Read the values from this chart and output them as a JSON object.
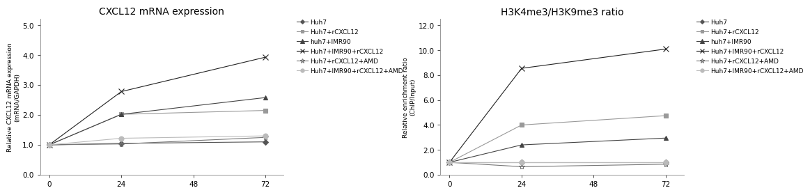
{
  "chart1": {
    "title": "CXCL12 mRNA expression",
    "ylabel": "Relative CXCL12 mRNA expression\n(mRNA/GAPDH)",
    "xlim": [
      -3,
      78
    ],
    "ylim": [
      0.0,
      5.2
    ],
    "yticks": [
      0.0,
      1.0,
      2.0,
      3.0,
      4.0,
      5.0
    ],
    "xticks": [
      0,
      24,
      48,
      72
    ],
    "x": [
      0,
      24,
      72
    ],
    "series": [
      {
        "label": "Huh7",
        "values": [
          1.0,
          1.05,
          1.1
        ],
        "color": "#555555",
        "marker": "D",
        "markersize": 4
      },
      {
        "label": "Huh7+rCXCL12",
        "values": [
          1.0,
          2.02,
          2.15
        ],
        "color": "#999999",
        "marker": "s",
        "markersize": 4
      },
      {
        "label": "huh7+IMR90",
        "values": [
          1.0,
          2.02,
          2.58
        ],
        "color": "#444444",
        "marker": "^",
        "markersize": 5
      },
      {
        "label": "Huh7+IMR90+rCXCL12",
        "values": [
          1.0,
          2.78,
          3.93
        ],
        "color": "#222222",
        "marker": "x",
        "markersize": 6
      },
      {
        "label": "Huh7+rCXCL12+AMD",
        "values": [
          1.0,
          1.03,
          1.25
        ],
        "color": "#777777",
        "marker": "*",
        "markersize": 6
      },
      {
        "label": "Huh7+IMR90+rCXCL12+AMD",
        "values": [
          1.0,
          1.22,
          1.3
        ],
        "color": "#bbbbbb",
        "marker": "o",
        "markersize": 5
      }
    ]
  },
  "chart2": {
    "title": "H3K4me3/H3K9me3 ratio",
    "ylabel": "Relative enrichment ratio\n(ChIP/Input)",
    "xlim": [
      -3,
      78
    ],
    "ylim": [
      0.0,
      12.5
    ],
    "yticks": [
      0.0,
      2.0,
      4.0,
      6.0,
      8.0,
      10.0,
      12.0
    ],
    "xticks": [
      0,
      24,
      48,
      72
    ],
    "x": [
      0,
      24,
      72
    ],
    "series": [
      {
        "label": "Huh7",
        "values": [
          1.0,
          1.0,
          1.0
        ],
        "color": "#555555",
        "marker": "D",
        "markersize": 4
      },
      {
        "label": "Huh7+rCXCL12",
        "values": [
          1.0,
          4.0,
          4.75
        ],
        "color": "#999999",
        "marker": "s",
        "markersize": 4
      },
      {
        "label": "huh7+IMR90",
        "values": [
          1.0,
          2.4,
          2.95
        ],
        "color": "#444444",
        "marker": "^",
        "markersize": 5
      },
      {
        "label": "Huh7+IMR90+rCXCL12",
        "values": [
          1.0,
          8.55,
          10.1
        ],
        "color": "#222222",
        "marker": "x",
        "markersize": 6
      },
      {
        "label": "Huh7+rCXCL12+AMD",
        "values": [
          1.0,
          0.65,
          0.85
        ],
        "color": "#777777",
        "marker": "*",
        "markersize": 6
      },
      {
        "label": "Huh7+IMR90+rCXCL12+AMD",
        "values": [
          1.0,
          1.0,
          1.0
        ],
        "color": "#bbbbbb",
        "marker": "o",
        "markersize": 5
      }
    ]
  },
  "background_color": "#ffffff",
  "title_fontsize": 10,
  "label_fontsize": 6.5,
  "tick_fontsize": 7.5,
  "legend_fontsize": 6.5
}
